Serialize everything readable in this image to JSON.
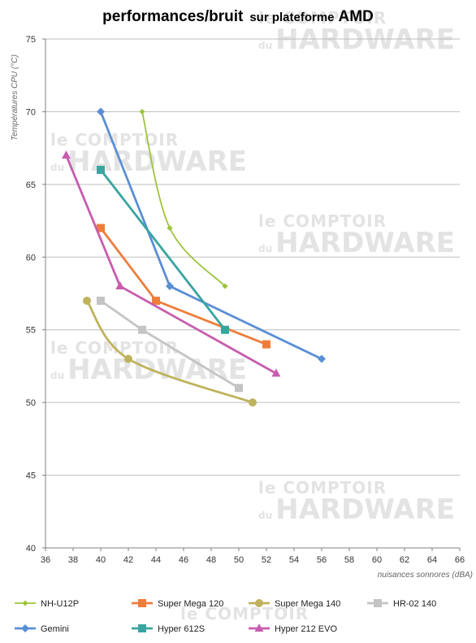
{
  "watermark": {
    "line1": "le COMPTOIR",
    "prefix": "du",
    "line2": "HARDWARE"
  },
  "chart_data": {
    "type": "line",
    "title_main": "performances/bruit",
    "title_sub": "sur plateforme",
    "title_end": "AMD",
    "xlabel": "nuisances sonnores (dBA)",
    "ylabel": "Températures  CPU (°C)",
    "xlim": [
      36,
      66
    ],
    "ylim": [
      40,
      75
    ],
    "xticks": [
      36,
      38,
      40,
      42,
      44,
      46,
      48,
      50,
      52,
      54,
      56,
      58,
      60,
      62,
      64,
      66
    ],
    "yticks": [
      40,
      45,
      50,
      55,
      60,
      65,
      70,
      75
    ],
    "grid": "horizontal",
    "legend_position": "bottom",
    "series": [
      {
        "name": "NH-U12P",
        "color": "#9dc43c",
        "marker": "diamond-small",
        "smooth": true,
        "x": [
          43,
          45,
          49
        ],
        "y": [
          70,
          62,
          58
        ]
      },
      {
        "name": "Super Mega 120",
        "color": "#ee7d3b",
        "marker": "square",
        "smooth": false,
        "x": [
          40,
          44,
          52
        ],
        "y": [
          62,
          57,
          54
        ]
      },
      {
        "name": "Super Mega 140",
        "color": "#bfb25c",
        "marker": "circle",
        "smooth": true,
        "x": [
          39,
          42,
          51
        ],
        "y": [
          57,
          53,
          50
        ]
      },
      {
        "name": "HR-02 140",
        "color": "#c4c4c4",
        "marker": "square",
        "smooth": false,
        "x": [
          40,
          43,
          50
        ],
        "y": [
          57,
          55,
          51
        ]
      },
      {
        "name": "Gemini",
        "color": "#5b8fd4",
        "marker": "diamond",
        "smooth": false,
        "x": [
          40,
          45,
          56
        ],
        "y": [
          70,
          58,
          53
        ]
      },
      {
        "name": "Hyper 612S",
        "color": "#3aa5a0",
        "marker": "square",
        "smooth": false,
        "x": [
          40,
          49
        ],
        "y": [
          66,
          55
        ]
      },
      {
        "name": "Hyper 212 EVO",
        "color": "#c75dae",
        "marker": "triangle",
        "smooth": false,
        "x": [
          37.5,
          41.4,
          52.7
        ],
        "y": [
          67,
          58,
          52
        ]
      }
    ]
  }
}
